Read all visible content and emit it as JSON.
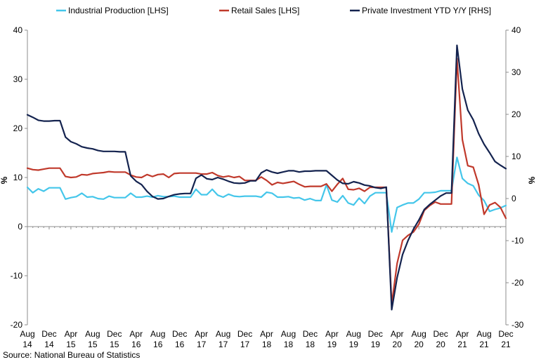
{
  "source": "Source: National Bureau of Statistics",
  "chart_data": {
    "type": "line",
    "title": "",
    "xlabel": "",
    "ylabel_left": "%",
    "ylabel_right": "%",
    "ylim_left": [
      -20,
      40
    ],
    "ylim_right": [
      -30,
      40
    ],
    "yticks_left": [
      "40",
      "30",
      "20",
      "10",
      "0",
      "-10",
      "-20"
    ],
    "yticks_right": [
      "40",
      "30",
      "20",
      "10",
      "0",
      "-10",
      "-20",
      "-30"
    ],
    "x": [
      "2014-08",
      "2014-09",
      "2014-10",
      "2014-11",
      "2014-12",
      "2015-01",
      "2015-02",
      "2015-03",
      "2015-04",
      "2015-05",
      "2015-06",
      "2015-07",
      "2015-08",
      "2015-09",
      "2015-10",
      "2015-11",
      "2015-12",
      "2016-01",
      "2016-02",
      "2016-03",
      "2016-04",
      "2016-05",
      "2016-06",
      "2016-07",
      "2016-08",
      "2016-09",
      "2016-10",
      "2016-11",
      "2016-12",
      "2017-01",
      "2017-02",
      "2017-03",
      "2017-04",
      "2017-05",
      "2017-06",
      "2017-07",
      "2017-08",
      "2017-09",
      "2017-10",
      "2017-11",
      "2017-12",
      "2018-01",
      "2018-02",
      "2018-03",
      "2018-04",
      "2018-05",
      "2018-06",
      "2018-07",
      "2018-08",
      "2018-09",
      "2018-10",
      "2018-11",
      "2018-12",
      "2019-01",
      "2019-02",
      "2019-03",
      "2019-04",
      "2019-05",
      "2019-06",
      "2019-07",
      "2019-08",
      "2019-09",
      "2019-10",
      "2019-11",
      "2019-12",
      "2020-01",
      "2020-02",
      "2020-03",
      "2020-04",
      "2020-05",
      "2020-06",
      "2020-07",
      "2020-08",
      "2020-09",
      "2020-10",
      "2020-11",
      "2020-12",
      "2021-01",
      "2021-02",
      "2021-03",
      "2021-04",
      "2021-05",
      "2021-06",
      "2021-07",
      "2021-08",
      "2021-09",
      "2021-10",
      "2021-11",
      "2021-12"
    ],
    "x_tick_labels": [
      {
        "i": 0,
        "month": "Aug",
        "year": "14"
      },
      {
        "i": 4,
        "month": "Dec",
        "year": "14"
      },
      {
        "i": 8,
        "month": "Apr",
        "year": "15"
      },
      {
        "i": 12,
        "month": "Aug",
        "year": "15"
      },
      {
        "i": 16,
        "month": "Dec",
        "year": "15"
      },
      {
        "i": 20,
        "month": "Apr",
        "year": "16"
      },
      {
        "i": 24,
        "month": "Aug",
        "year": "16"
      },
      {
        "i": 28,
        "month": "Dec",
        "year": "16"
      },
      {
        "i": 32,
        "month": "Apr",
        "year": "17"
      },
      {
        "i": 36,
        "month": "Aug",
        "year": "17"
      },
      {
        "i": 40,
        "month": "Dec",
        "year": "17"
      },
      {
        "i": 44,
        "month": "Apr",
        "year": "18"
      },
      {
        "i": 48,
        "month": "Aug",
        "year": "18"
      },
      {
        "i": 52,
        "month": "Dec",
        "year": "18"
      },
      {
        "i": 56,
        "month": "Apr",
        "year": "19"
      },
      {
        "i": 60,
        "month": "Aug",
        "year": "19"
      },
      {
        "i": 64,
        "month": "Dec",
        "year": "19"
      },
      {
        "i": 68,
        "month": "Apr",
        "year": "20"
      },
      {
        "i": 72,
        "month": "Aug",
        "year": "20"
      },
      {
        "i": 76,
        "month": "Dec",
        "year": "20"
      },
      {
        "i": 80,
        "month": "Apr",
        "year": "21"
      },
      {
        "i": 84,
        "month": "Aug",
        "year": "21"
      },
      {
        "i": 88,
        "month": "Dec",
        "year": "21"
      }
    ],
    "series": [
      {
        "name": "Industrial Production [LHS]",
        "axis": "left",
        "color": "#44c6ea",
        "values": [
          8.0,
          6.9,
          7.7,
          7.2,
          7.9,
          7.9,
          7.9,
          5.6,
          5.9,
          6.1,
          6.8,
          6.0,
          6.1,
          5.7,
          5.6,
          6.2,
          5.9,
          5.9,
          5.9,
          6.8,
          6.0,
          6.0,
          6.2,
          6.0,
          6.3,
          6.1,
          6.1,
          6.2,
          6.0,
          6.0,
          6.0,
          7.6,
          6.5,
          6.5,
          7.6,
          6.4,
          6.0,
          6.6,
          6.2,
          6.1,
          6.2,
          6.2,
          6.2,
          6.0,
          7.0,
          6.8,
          6.0,
          6.0,
          6.1,
          5.8,
          5.9,
          5.4,
          5.7,
          5.3,
          5.3,
          8.5,
          5.4,
          5.0,
          6.3,
          4.8,
          4.4,
          5.8,
          4.7,
          6.2,
          6.9,
          6.9,
          6.9,
          -1.1,
          3.9,
          4.4,
          4.8,
          4.8,
          5.6,
          6.9,
          6.9,
          7.0,
          7.3,
          7.3,
          7.3,
          14.1,
          9.8,
          8.8,
          8.3,
          6.4,
          5.3,
          3.1,
          3.5,
          3.8,
          4.3
        ]
      },
      {
        "name": "Retail Sales [LHS]",
        "axis": "left",
        "color": "#c0392b",
        "values": [
          11.9,
          11.6,
          11.5,
          11.7,
          11.9,
          11.9,
          11.9,
          10.2,
          10.0,
          10.1,
          10.6,
          10.5,
          10.8,
          10.9,
          11.0,
          11.2,
          11.1,
          11.1,
          11.1,
          10.5,
          10.1,
          10.0,
          10.6,
          10.2,
          10.6,
          10.7,
          10.0,
          10.8,
          10.9,
          10.9,
          10.9,
          10.9,
          10.7,
          10.7,
          11.0,
          10.4,
          10.1,
          10.3,
          10.0,
          10.2,
          9.4,
          9.4,
          9.4,
          10.1,
          9.4,
          8.5,
          9.0,
          8.8,
          9.0,
          9.2,
          8.6,
          8.1,
          8.2,
          8.2,
          8.2,
          8.7,
          7.2,
          8.6,
          9.8,
          7.6,
          7.5,
          7.8,
          7.2,
          8.0,
          8.0,
          8.0,
          8.0,
          -15.8,
          -7.5,
          -2.8,
          -1.8,
          -1.1,
          0.5,
          3.3,
          4.3,
          5.0,
          4.6,
          4.6,
          4.6,
          34.2,
          17.7,
          12.4,
          12.1,
          8.5,
          2.5,
          4.4,
          4.9,
          3.9,
          1.7
        ]
      },
      {
        "name": "Private Investment YTD Y/Y [RHS]",
        "axis": "right",
        "color": "#14234f",
        "values": [
          19.9,
          19.3,
          18.6,
          18.4,
          18.4,
          18.5,
          18.5,
          14.6,
          13.5,
          13.0,
          12.3,
          12.0,
          11.8,
          11.4,
          11.2,
          11.2,
          11.2,
          11.1,
          11.1,
          5.4,
          4.1,
          3.3,
          1.7,
          0.5,
          -0.1,
          0.0,
          0.5,
          0.9,
          1.1,
          1.2,
          1.2,
          4.8,
          5.6,
          4.7,
          4.5,
          5.0,
          4.6,
          4.1,
          3.7,
          3.6,
          3.7,
          4.2,
          4.2,
          6.1,
          6.8,
          6.3,
          6.0,
          6.3,
          6.6,
          6.6,
          6.3,
          6.5,
          6.5,
          6.6,
          6.6,
          6.6,
          5.5,
          4.4,
          3.6,
          3.5,
          4.0,
          3.7,
          3.2,
          3.0,
          2.6,
          2.4,
          2.7,
          -26.4,
          -18.8,
          -13.3,
          -10.0,
          -7.3,
          -5.1,
          -2.6,
          -1.4,
          -0.4,
          0.6,
          1.3,
          1.3,
          36.4,
          26.0,
          21.0,
          18.7,
          15.4,
          12.9,
          10.9,
          8.8,
          7.9,
          7.1
        ]
      }
    ],
    "legend_position": "top",
    "grid": false
  }
}
